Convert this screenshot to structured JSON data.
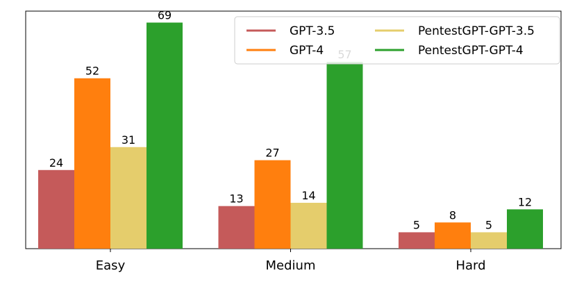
{
  "chart_data": {
    "type": "bar",
    "categories": [
      "Easy",
      "Medium",
      "Hard"
    ],
    "series": [
      {
        "name": "GPT-3.5",
        "values": [
          24,
          13,
          5
        ],
        "color": "#c55a5a"
      },
      {
        "name": "GPT-4",
        "values": [
          52,
          27,
          8
        ],
        "color": "#ff7f0e"
      },
      {
        "name": "PentestGPT-GPT-3.5",
        "values": [
          31,
          14,
          5
        ],
        "color": "#e5cd6c"
      },
      {
        "name": "PentestGPT-GPT-4",
        "values": [
          69,
          57,
          12
        ],
        "color": "#2ca02c"
      }
    ],
    "title": "",
    "xlabel": "",
    "ylabel": "",
    "ylim": [
      0,
      72.5
    ],
    "show_y_ticks": false,
    "grid": false,
    "legend": {
      "position": "top-right",
      "columns": 2
    },
    "data_labels": true
  }
}
